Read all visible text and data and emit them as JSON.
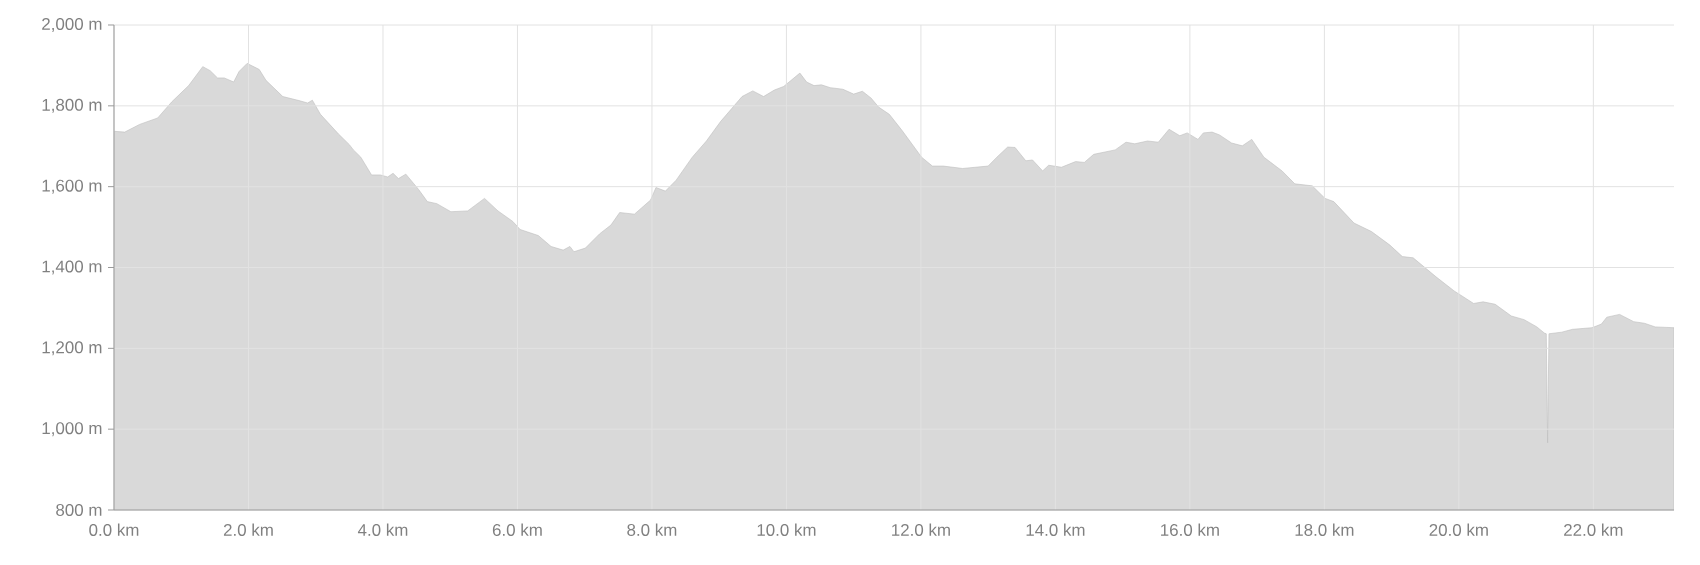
{
  "chart_data": {
    "type": "area",
    "color": "#d9d9d9",
    "grid": true,
    "x": [
      0,
      0.16,
      0.38,
      0.65,
      0.86,
      1.11,
      1.32,
      1.43,
      1.54,
      1.64,
      1.78,
      1.86,
      1.98,
      2.16,
      2.26,
      2.51,
      2.75,
      2.88,
      2.95,
      3.07,
      3.34,
      3.5,
      3.56,
      3.67,
      3.83,
      3.96,
      4.07,
      4.15,
      4.23,
      4.34,
      4.53,
      4.66,
      4.8,
      5.01,
      5.26,
      5.51,
      5.71,
      5.93,
      6.04,
      6.31,
      6.5,
      6.68,
      6.78,
      6.84,
      7.01,
      7.22,
      7.39,
      7.52,
      7.74,
      7.87,
      7.98,
      8.06,
      8.2,
      8.36,
      8.6,
      8.81,
      9.02,
      9.34,
      9.5,
      9.66,
      9.82,
      9.96,
      10.2,
      10.3,
      10.41,
      10.52,
      10.65,
      10.84,
      11.0,
      11.13,
      11.26,
      11.37,
      11.53,
      11.72,
      12.01,
      12.17,
      12.33,
      12.62,
      13.0,
      13.13,
      13.29,
      13.4,
      13.56,
      13.66,
      13.81,
      13.9,
      14.09,
      14.3,
      14.43,
      14.57,
      14.89,
      15.05,
      15.18,
      15.37,
      15.53,
      15.69,
      15.85,
      15.96,
      16.12,
      16.2,
      16.33,
      16.44,
      16.62,
      16.78,
      16.92,
      17.1,
      17.37,
      17.56,
      17.82,
      18.01,
      18.14,
      18.44,
      18.7,
      18.97,
      19.16,
      19.32,
      19.66,
      19.93,
      20.22,
      20.36,
      20.54,
      20.78,
      20.97,
      21.16,
      21.27,
      21.3,
      21.32,
      21.34,
      21.53,
      21.69,
      21.98,
      22.12,
      22.2,
      22.39,
      22.6,
      22.76,
      22.92,
      23.2
    ],
    "values": [
      1737,
      1735,
      1754,
      1770,
      1810,
      1850,
      1897,
      1887,
      1869,
      1869,
      1859,
      1885,
      1905,
      1890,
      1863,
      1823,
      1813,
      1807,
      1814,
      1779,
      1730,
      1704,
      1691,
      1673,
      1629,
      1629,
      1624,
      1633,
      1620,
      1631,
      1593,
      1563,
      1558,
      1538,
      1540,
      1571,
      1540,
      1514,
      1494,
      1479,
      1452,
      1443,
      1452,
      1439,
      1448,
      1483,
      1505,
      1536,
      1532,
      1551,
      1567,
      1598,
      1589,
      1616,
      1673,
      1713,
      1761,
      1823,
      1837,
      1823,
      1839,
      1848,
      1881,
      1859,
      1850,
      1852,
      1845,
      1841,
      1829,
      1836,
      1819,
      1797,
      1779,
      1739,
      1673,
      1651,
      1651,
      1645,
      1651,
      1673,
      1698,
      1697,
      1664,
      1666,
      1639,
      1653,
      1648,
      1662,
      1660,
      1680,
      1691,
      1710,
      1706,
      1713,
      1710,
      1742,
      1726,
      1733,
      1717,
      1733,
      1735,
      1728,
      1708,
      1701,
      1717,
      1673,
      1639,
      1607,
      1602,
      1571,
      1563,
      1510,
      1489,
      1456,
      1427,
      1424,
      1377,
      1342,
      1311,
      1315,
      1309,
      1280,
      1271,
      1253,
      1238,
      1236,
      966,
      1236,
      1240,
      1247,
      1251,
      1260,
      1277,
      1284,
      1266,
      1262,
      1253,
      1251
    ],
    "xlim": [
      0,
      23.2
    ],
    "ylim": [
      800,
      2000
    ],
    "xticks": [
      {
        "value": 0,
        "label": "0.0 km"
      },
      {
        "value": 2,
        "label": "2.0 km"
      },
      {
        "value": 4,
        "label": "4.0 km"
      },
      {
        "value": 6,
        "label": "6.0 km"
      },
      {
        "value": 8,
        "label": "8.0 km"
      },
      {
        "value": 10,
        "label": "10.0 km"
      },
      {
        "value": 12,
        "label": "12.0 km"
      },
      {
        "value": 14,
        "label": "14.0 km"
      },
      {
        "value": 16,
        "label": "16.0 km"
      },
      {
        "value": 18,
        "label": "18.0 km"
      },
      {
        "value": 20,
        "label": "20.0 km"
      },
      {
        "value": 22,
        "label": "22.0 km"
      }
    ],
    "yticks": [
      {
        "value": 800,
        "label": "800 m"
      },
      {
        "value": 1000,
        "label": "1,000 m"
      },
      {
        "value": 1200,
        "label": "1,200 m"
      },
      {
        "value": 1400,
        "label": "1,400 m"
      },
      {
        "value": 1600,
        "label": "1,600 m"
      },
      {
        "value": 1800,
        "label": "1,800 m"
      },
      {
        "value": 2000,
        "label": "2,000 m"
      }
    ]
  }
}
